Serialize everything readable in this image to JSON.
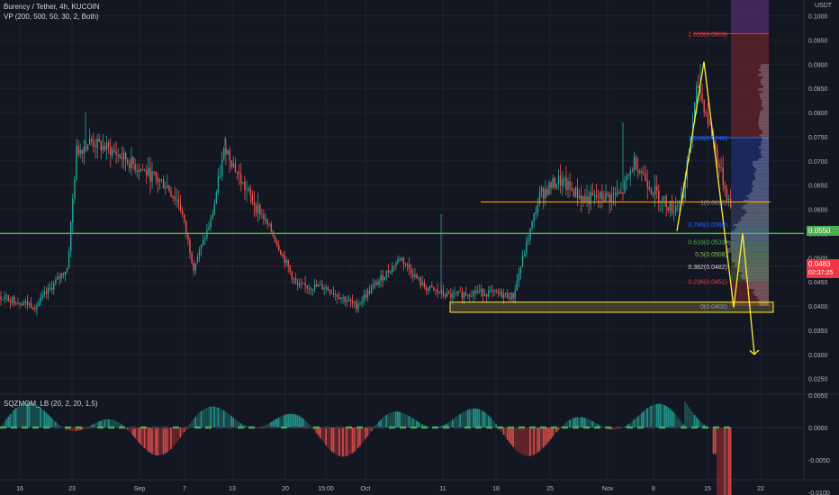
{
  "header": {
    "symbol_line": "Burency / Tether, 4h, KUCOIN",
    "indicator_vp": "VP (200, 500, 50, 30, 2, Both)",
    "currency": "USDT"
  },
  "price_axis": {
    "min": 0.02,
    "max": 0.1,
    "ticks": [
      "0.1000",
      "0.0950",
      "0.0900",
      "0.0850",
      "0.0800",
      "0.0750",
      "0.0700",
      "0.0650",
      "0.0600",
      "0.0550",
      "0.0500",
      "0.0450",
      "0.0400",
      "0.0350",
      "0.0300",
      "0.0250"
    ]
  },
  "badges": {
    "support_level": "0.0550",
    "last_price": "0.0483",
    "countdown": "02:37:25"
  },
  "fib_labels": [
    {
      "text": "2.618(0.0963)",
      "price": 0.0963,
      "color": "#f23645"
    },
    {
      "text": "1.618(0.0748)",
      "price": 0.0748,
      "color": "#2962ff"
    },
    {
      "text": "1(0.0615)",
      "price": 0.0615,
      "color": "#9598a1"
    },
    {
      "text": "0.786(0.0569)",
      "price": 0.0569,
      "color": "#2962ff"
    },
    {
      "text": "0.618(0.0533)",
      "price": 0.0533,
      "color": "#4caf50"
    },
    {
      "text": "0.5(0.0508)",
      "price": 0.0508,
      "color": "#8bc34a"
    },
    {
      "text": "0.382(0.0482)",
      "price": 0.0482,
      "color": "#d1d4dc"
    },
    {
      "text": "0.236(0.0451)",
      "price": 0.0451,
      "color": "#f23645"
    },
    {
      "text": "0(0.0400)",
      "price": 0.04,
      "color": "#9598a1"
    }
  ],
  "indicator": {
    "label": "SQZMOM_LB (20, 2, 20, 1.5)",
    "ticks": [
      "0.0050",
      "0.0000",
      "-0.0050",
      "-0.0100"
    ],
    "min": -0.012,
    "max": 0.0065
  },
  "time_axis": {
    "labels": [
      "16",
      "23",
      "Sep",
      "7",
      "13",
      "20",
      "15:00",
      "Oct",
      "11",
      "18",
      "25",
      "Nov",
      "8",
      "15",
      "22"
    ]
  },
  "colors": {
    "background": "#131722",
    "up": "#26a69a",
    "down": "#ef5350",
    "support_line": "#4caf50",
    "resistance_line": "#ff9800",
    "projection": "#ffeb3b",
    "volume_profile": "#b2b5be"
  }
}
